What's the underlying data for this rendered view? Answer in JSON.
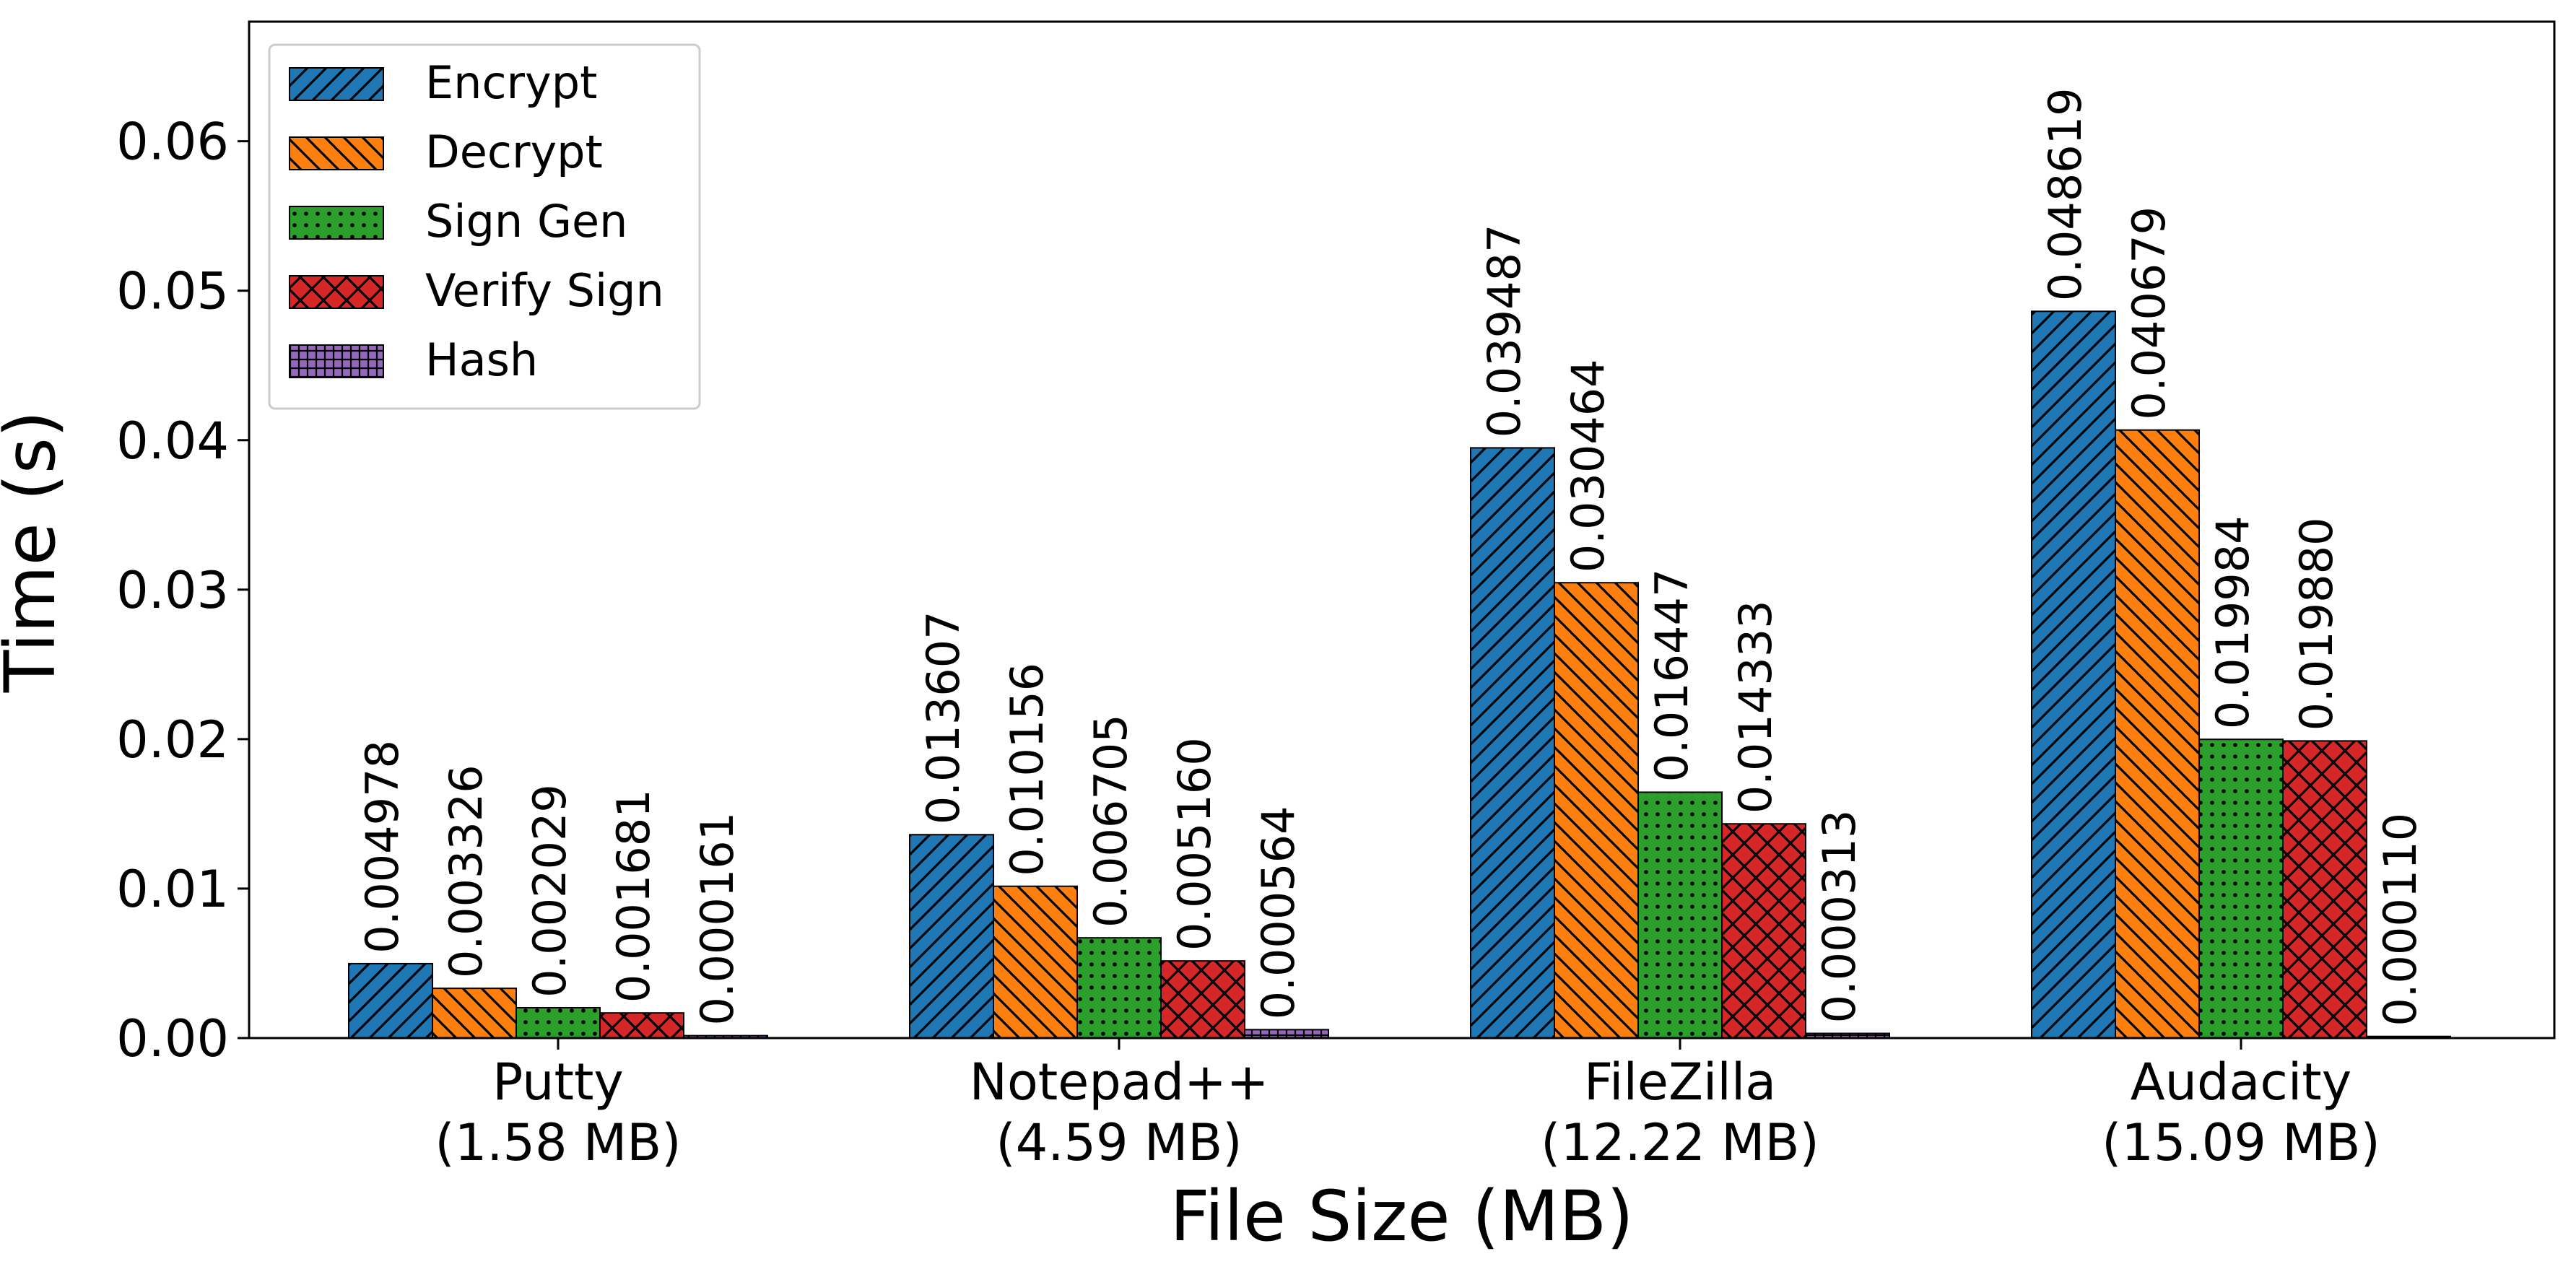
{
  "chart_data": {
    "type": "bar",
    "title": "",
    "xlabel": "File Size (MB)",
    "ylabel": "Time (s)",
    "ylim": [
      0,
      0.068
    ],
    "yticks": [
      0.0,
      0.01,
      0.02,
      0.03,
      0.04,
      0.05,
      0.06
    ],
    "ytick_labels": [
      "0.00",
      "0.01",
      "0.02",
      "0.03",
      "0.04",
      "0.05",
      "0.06"
    ],
    "grid": false,
    "legend_position": "top-left",
    "categories": [
      [
        "Putty",
        "(1.58 MB)"
      ],
      [
        "Notepad++",
        "(4.59 MB)"
      ],
      [
        "FileZilla",
        "(12.22 MB)"
      ],
      [
        "Audacity",
        "(15.09 MB)"
      ]
    ],
    "series": [
      {
        "name": "Encrypt",
        "color": "#1f77b4",
        "hatch": "diagonal",
        "values": [
          0.004978,
          0.013607,
          0.039487,
          0.048619
        ],
        "labels": [
          "0.004978",
          "0.013607",
          "0.039487",
          "0.048619"
        ]
      },
      {
        "name": "Decrypt",
        "color": "#ff7f0e",
        "hatch": "back-diagonal",
        "values": [
          0.003326,
          0.010156,
          0.030464,
          0.040679
        ],
        "labels": [
          "0.003326",
          "0.010156",
          "0.030464",
          "0.040679"
        ]
      },
      {
        "name": "Sign Gen",
        "color": "#2ca02c",
        "hatch": "dots",
        "values": [
          0.002029,
          0.006705,
          0.016447,
          0.019984
        ],
        "labels": [
          "0.002029",
          "0.006705",
          "0.016447",
          "0.019984"
        ]
      },
      {
        "name": "Verify Sign",
        "color": "#d62728",
        "hatch": "crosshatch",
        "values": [
          0.001681,
          0.00516,
          0.014333,
          0.01988
        ],
        "labels": [
          "0.001681",
          "0.005160",
          "0.014333",
          "0.019880"
        ]
      },
      {
        "name": "Hash",
        "color": "#9467bd",
        "hatch": "grid",
        "values": [
          0.000161,
          0.000564,
          0.000313,
          0.00011
        ],
        "labels": [
          "0.000161",
          "0.000564",
          "0.000313",
          "0.000110"
        ]
      }
    ]
  }
}
